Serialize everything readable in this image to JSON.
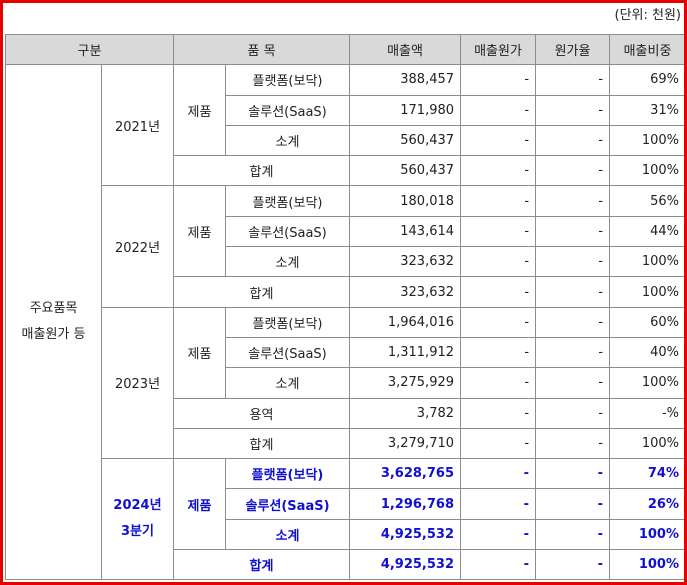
{
  "unit_label": "(단위: 천원)",
  "headers": [
    "구분",
    "품 목",
    "매출액",
    "매출원가",
    "원가율",
    "매출비중"
  ],
  "group_label_line1": "주요품목",
  "group_label_line2": "매출원가 등",
  "years": [
    {
      "year": "2021년",
      "category": "제품",
      "rows": [
        {
          "item": "플랫폼(보닥)",
          "sales": "388,457",
          "cost": "-",
          "ratio": "-",
          "share": "69%"
        },
        {
          "item": "솔루션(SaaS)",
          "sales": "171,980",
          "cost": "-",
          "ratio": "-",
          "share": "31%"
        },
        {
          "item": "소계",
          "sales": "560,437",
          "cost": "-",
          "ratio": "-",
          "share": "100%"
        }
      ],
      "total": {
        "item": "합계",
        "sales": "560,437",
        "cost": "-",
        "ratio": "-",
        "share": "100%"
      }
    },
    {
      "year": "2022년",
      "category": "제품",
      "rows": [
        {
          "item": "플랫폼(보닥)",
          "sales": "180,018",
          "cost": "-",
          "ratio": "-",
          "share": "56%"
        },
        {
          "item": "솔루션(SaaS)",
          "sales": "143,614",
          "cost": "-",
          "ratio": "-",
          "share": "44%"
        },
        {
          "item": "소계",
          "sales": "323,632",
          "cost": "-",
          "ratio": "-",
          "share": "100%"
        }
      ],
      "total": {
        "item": "합계",
        "sales": "323,632",
        "cost": "-",
        "ratio": "-",
        "share": "100%"
      }
    },
    {
      "year": "2023년",
      "category": "제품",
      "rows": [
        {
          "item": "플랫폼(보닥)",
          "sales": "1,964,016",
          "cost": "-",
          "ratio": "-",
          "share": "60%"
        },
        {
          "item": "솔루션(SaaS)",
          "sales": "1,311,912",
          "cost": "-",
          "ratio": "-",
          "share": "40%"
        },
        {
          "item": "소계",
          "sales": "3,275,929",
          "cost": "-",
          "ratio": "-",
          "share": "100%"
        }
      ],
      "service": {
        "item": "용역",
        "sales": "3,782",
        "cost": "-",
        "ratio": "-",
        "share": "-%"
      },
      "total": {
        "item": "합계",
        "sales": "3,279,710",
        "cost": "-",
        "ratio": "-",
        "share": "100%"
      }
    },
    {
      "year_line1": "2024년",
      "year_line2": "3분기",
      "category": "제품",
      "rows": [
        {
          "item": "플랫폼(보닥)",
          "sales": "3,628,765",
          "cost": "-",
          "ratio": "-",
          "share": "74%"
        },
        {
          "item": "솔루션(SaaS)",
          "sales": "1,296,768",
          "cost": "-",
          "ratio": "-",
          "share": "26%"
        },
        {
          "item": "소계",
          "sales": "4,925,532",
          "cost": "-",
          "ratio": "-",
          "share": "100%"
        }
      ],
      "total": {
        "item": "합계",
        "sales": "4,925,532",
        "cost": "-",
        "ratio": "-",
        "share": "100%"
      }
    }
  ],
  "colors": {
    "border_accent": "#e60000",
    "header_bg": "#d9d9d9",
    "highlight_text": "#1010d0"
  }
}
